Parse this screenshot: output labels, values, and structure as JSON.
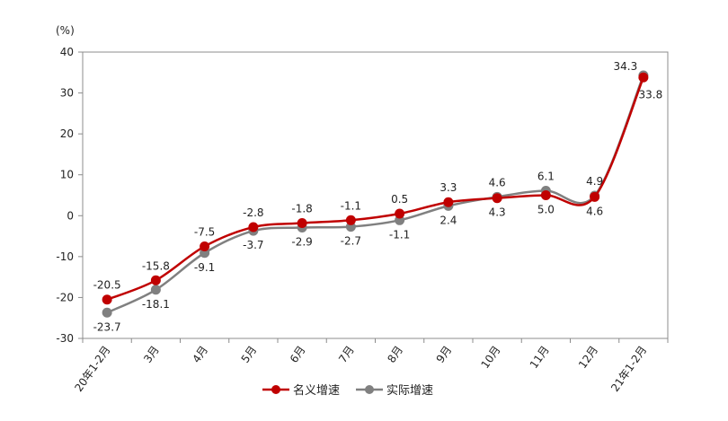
{
  "chart_data": {
    "type": "line",
    "unit_label": "(%)",
    "categories": [
      "20年1-2月",
      "3月",
      "4月",
      "5月",
      "6月",
      "7月",
      "8月",
      "9月",
      "10月",
      "11月",
      "12月",
      "21年1-2月"
    ],
    "ylim": [
      -30,
      40
    ],
    "yticks": [
      40,
      30,
      20,
      10,
      0,
      -10,
      -20,
      -30
    ],
    "grid": false,
    "legend_position": "bottom",
    "series": [
      {
        "name": "名义增速",
        "color": "#C00000",
        "values": [
          -20.5,
          -15.8,
          -7.5,
          -2.8,
          -1.8,
          -1.1,
          0.5,
          3.3,
          4.3,
          5.0,
          4.6,
          33.8
        ],
        "labels": [
          "-20.5",
          "-15.8",
          "-7.5",
          "-2.8",
          "-1.8",
          "-1.1",
          "0.5",
          "3.3",
          "4.3",
          "5.0",
          "4.6",
          "33.8"
        ]
      },
      {
        "name": "实际增速",
        "color": "#808080",
        "values": [
          -23.7,
          -18.1,
          -9.1,
          -3.7,
          -2.9,
          -2.7,
          -1.1,
          2.4,
          4.6,
          6.1,
          4.9,
          34.3
        ],
        "labels": [
          "-23.7",
          "-18.1",
          "-9.1",
          "-3.7",
          "-2.9",
          "-2.7",
          "-1.1",
          "2.4",
          "4.6",
          "6.1",
          "4.9",
          "34.3"
        ]
      }
    ]
  }
}
